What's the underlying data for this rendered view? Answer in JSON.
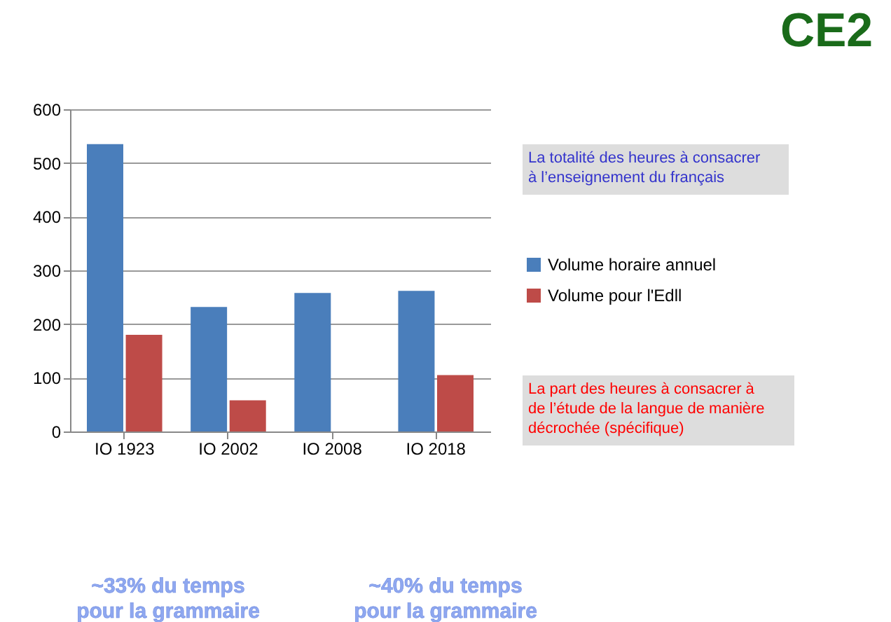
{
  "chart_data": {
    "type": "bar",
    "title": "CE2",
    "categories": [
      "IO 1923",
      "IO 2002",
      "IO 2008",
      "IO 2018"
    ],
    "series": [
      {
        "name": "Volume horaire annuel",
        "color": "#4a7ebb",
        "values": [
          535,
          232,
          258,
          262
        ]
      },
      {
        "name": "Volume pour l'Edll",
        "color": "#be4b48",
        "values": [
          180,
          58,
          null,
          105
        ]
      }
    ],
    "ylim": [
      0,
      600
    ],
    "yticks": [
      0,
      100,
      200,
      300,
      400,
      500,
      600
    ],
    "grid": "y",
    "legend": "right",
    "annotations": [
      "La totalité des heures à consacrer\nà l’enseignement du français",
      "La part des heures à consacrer à\nde l’étude de la langue de manière\ndécrochée (spécifique)",
      "~33% du temps\npour la grammaire",
      "~40% du temps\npour la grammaire"
    ]
  }
}
